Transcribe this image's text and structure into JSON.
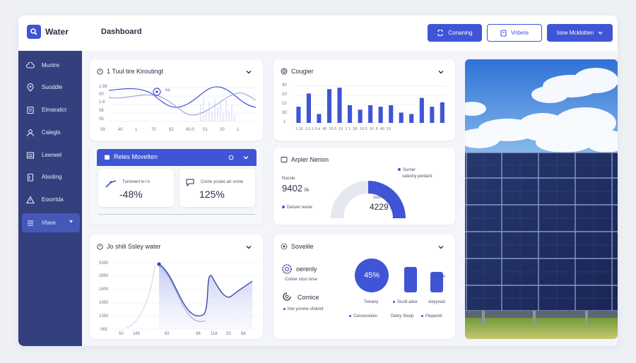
{
  "header": {
    "app_name": "Water",
    "title": "Dashboard",
    "btn_primary": "Conaning",
    "btn_outline": "Vribete",
    "btn_user": "Ione Mcklotten"
  },
  "sidebar": {
    "items": [
      {
        "label": "Muntre",
        "icon": "cloud-icon"
      },
      {
        "label": "Suoddle",
        "icon": "location-icon"
      },
      {
        "label": "Elmaralict",
        "icon": "document-icon"
      },
      {
        "label": "Calegls",
        "icon": "user-icon"
      },
      {
        "label": "Leerwel",
        "icon": "list-icon"
      },
      {
        "label": "Alsoting",
        "icon": "clipboard-icon"
      },
      {
        "label": "Eoorrtda",
        "icon": "warning-icon"
      },
      {
        "label": "Irfave",
        "icon": "menu-icon"
      }
    ]
  },
  "card1": {
    "title": "1 Tuul tire Kiroutingt",
    "y_labels": [
      "1.98",
      "00",
      "1.8",
      "08",
      "05"
    ],
    "x_labels": [
      "09",
      "40",
      "1",
      "70",
      "92",
      "40.0",
      "01",
      "20",
      "1"
    ],
    "inner_label": "ea"
  },
  "card2": {
    "title": "Cougier",
    "y_labels": [
      "40",
      "10",
      "10",
      "30",
      "1"
    ],
    "x_labels": "1.18  1.0 1.0 d  40  10 0  10  1 1  1B  10 0  10  0  40  10",
    "bar_values": [
      22,
      40,
      12,
      46,
      48,
      24,
      18,
      24,
      22,
      24,
      14,
      12,
      34,
      22,
      28
    ]
  },
  "card3": {
    "title": "Reles Movelten",
    "mini1_label": "Tumment lo l'o",
    "mini1_value": "-48%",
    "mini2_label": "Corrie ycoies atr scrrie",
    "mini2_value": "125%"
  },
  "card4": {
    "title": "Arpler Nerion",
    "left_label": "Nucsle",
    "left_value": "9402",
    "left_unit": "lik",
    "legend_left": "Denver weisk",
    "center_label": "comlo",
    "center_value": "4229",
    "center_unit": "/o",
    "legend_right_1": "Surner",
    "legend_right_2": "caleshy perdant",
    "gauge_percent": 62
  },
  "card5": {
    "title": "Jo shili Ssley water",
    "y_labels": [
      "3350",
      "2850",
      "1400",
      "1950",
      "1350",
      "065"
    ],
    "x_labels": [
      "50",
      "185",
      "82",
      "98",
      "118",
      "53",
      "68"
    ]
  },
  "card6": {
    "title": "Soveiile",
    "item1_label": "oerenly",
    "item1_sub": "Comer sicul sirse",
    "item2_label": "Comice",
    "item2_sub": "lme yorone ofoloint",
    "circle_value": "45%",
    "bar_label_1": "Cenver",
    "bar_label_2": "sleyyoad",
    "bottom_1": "Tolvany",
    "bottom_2": "Sicoll ailoe",
    "legend_1": "Cerovoooien",
    "legend_2": "Deloy Sloop",
    "legend_3": "Flepereb",
    "bar1_level": 0.78,
    "bar2_level": 0.62
  },
  "colors": {
    "accent": "#3f55d6",
    "sidebar": "#343f7e",
    "sidebar_active": "#4558b8"
  }
}
